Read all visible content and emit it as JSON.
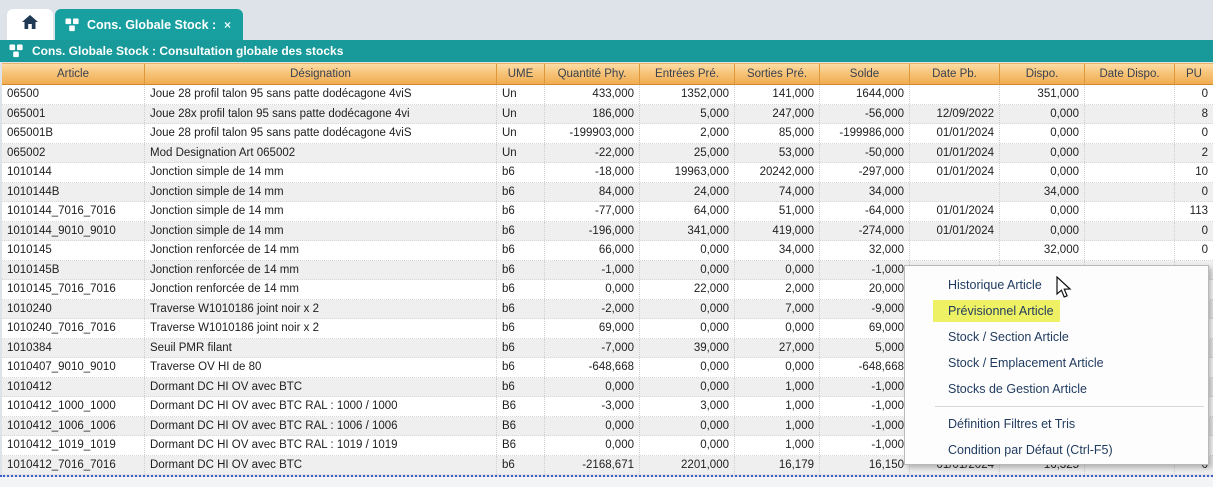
{
  "tabs": {
    "home": {
      "icon": "home"
    },
    "active": {
      "label": "Cons. Globale Stock : C...",
      "close_label": "×"
    }
  },
  "titlebar": {
    "title": "Cons. Globale Stock : Consultation globale des stocks"
  },
  "table": {
    "columns": [
      {
        "label": "Article"
      },
      {
        "label": "Désignation"
      },
      {
        "label": "UME"
      },
      {
        "label": "Quantité Phy."
      },
      {
        "label": "Entrées Pré."
      },
      {
        "label": "Sorties Pré."
      },
      {
        "label": "Solde"
      },
      {
        "label": "Date Pb."
      },
      {
        "label": "Dispo."
      },
      {
        "label": "Date Dispo."
      },
      {
        "label": "PU"
      }
    ],
    "rows": [
      [
        "06500",
        "Joue 28 profil talon 95 sans patte dodécagone 4viS",
        "Un",
        "433,000",
        "1352,000",
        "141,000",
        "1644,000",
        "",
        "351,000",
        "",
        "0"
      ],
      [
        "065001",
        "Joue 28x profil talon 95 sans patte dodécagone 4vi",
        "Un",
        "186,000",
        "5,000",
        "247,000",
        "-56,000",
        "12/09/2022",
        "0,000",
        "",
        "8"
      ],
      [
        "065001B",
        "Joue 28 profil talon 95 sans patte dodécagone 4viS",
        "Un",
        "-199903,000",
        "2,000",
        "85,000",
        "-199986,000",
        "01/01/2024",
        "0,000",
        "",
        "0"
      ],
      [
        "065002",
        "Mod Designation Art 065002",
        "Un",
        "-22,000",
        "25,000",
        "53,000",
        "-50,000",
        "01/01/2024",
        "0,000",
        "",
        "2"
      ],
      [
        "1010144",
        "Jonction simple de 14 mm",
        "b6",
        "-18,000",
        "19963,000",
        "20242,000",
        "-297,000",
        "01/01/2024",
        "0,000",
        "",
        "10"
      ],
      [
        "1010144B",
        "Jonction simple de 14 mm",
        "b6",
        "84,000",
        "24,000",
        "74,000",
        "34,000",
        "",
        "34,000",
        "",
        "0"
      ],
      [
        "1010144_7016_7016",
        "Jonction simple de 14 mm",
        "b6",
        "-77,000",
        "64,000",
        "51,000",
        "-64,000",
        "01/01/2024",
        "0,000",
        "",
        "113"
      ],
      [
        "1010144_9010_9010",
        "Jonction simple de 14 mm",
        "b6",
        "-196,000",
        "341,000",
        "419,000",
        "-274,000",
        "01/01/2024",
        "0,000",
        "",
        "0"
      ],
      [
        "1010145",
        "Jonction renforcée de 14 mm",
        "b6",
        "66,000",
        "0,000",
        "34,000",
        "32,000",
        "",
        "32,000",
        "",
        "0"
      ],
      [
        "1010145B",
        "Jonction renforcée de 14 mm",
        "b6",
        "-1,000",
        "0,000",
        "0,000",
        "-1,000",
        "",
        "",
        "",
        ""
      ],
      [
        "1010145_7016_7016",
        "Jonction renforcée de 14 mm",
        "b6",
        "0,000",
        "22,000",
        "2,000",
        "20,000",
        "",
        "",
        "",
        ""
      ],
      [
        "1010240",
        "Traverse W1010186 joint noir x 2",
        "b6",
        "-2,000",
        "0,000",
        "7,000",
        "-9,000",
        "",
        "",
        "",
        ""
      ],
      [
        "1010240_7016_7016",
        "Traverse W1010186 joint noir x 2",
        "b6",
        "69,000",
        "0,000",
        "0,000",
        "69,000",
        "",
        "",
        "",
        ""
      ],
      [
        "1010384",
        "Seuil PMR filant",
        "b6",
        "-7,000",
        "39,000",
        "27,000",
        "5,000",
        "",
        "",
        "",
        ""
      ],
      [
        "1010407_9010_9010",
        "Traverse OV HI de 80",
        "b6",
        "-648,668",
        "0,000",
        "0,000",
        "-648,668",
        "",
        "",
        "",
        ""
      ],
      [
        "1010412",
        "Dormant DC HI OV avec BTC",
        "b6",
        "0,000",
        "0,000",
        "1,000",
        "-1,000",
        "",
        "",
        "",
        ""
      ],
      [
        "1010412_1000_1000",
        "Dormant DC HI OV avec BTC RAL : 1000 / 1000",
        "B6",
        "-3,000",
        "3,000",
        "1,000",
        "-1,000",
        "",
        "",
        "",
        ""
      ],
      [
        "1010412_1006_1006",
        "Dormant DC HI OV avec BTC RAL : 1006 / 1006",
        "B6",
        "0,000",
        "0,000",
        "1,000",
        "-1,000",
        "",
        "",
        "",
        ""
      ],
      [
        "1010412_1019_1019",
        "Dormant DC HI OV avec BTC RAL : 1019 / 1019",
        "B6",
        "0,000",
        "0,000",
        "1,000",
        "-1,000",
        "",
        "",
        "",
        ""
      ],
      [
        "1010412_7016_7016",
        "Dormant DC HI OV avec BTC",
        "b6",
        "-2168,671",
        "2201,000",
        "16,179",
        "16,150",
        "01/01/2024",
        "16,325",
        "",
        "0"
      ]
    ]
  },
  "context_menu": {
    "highlight_color": "#eff164",
    "items": [
      {
        "label": "Historique Article",
        "highlighted": false
      },
      {
        "label": "Prévisionnel Article",
        "highlighted": true
      },
      {
        "label": "Stock / Section Article",
        "highlighted": false
      },
      {
        "label": "Stock / Emplacement Article",
        "highlighted": false
      },
      {
        "label": "Stocks de Gestion Article",
        "highlighted": false
      },
      {
        "separator": true
      },
      {
        "label": "Définition Filtres et Tris",
        "highlighted": false
      },
      {
        "label": "Condition par Défaut (Ctrl-F5)",
        "highlighted": false
      }
    ]
  },
  "colors": {
    "teal": "#189a9a",
    "header_orange": "#f6c479",
    "menu_highlight": "#eff164"
  }
}
